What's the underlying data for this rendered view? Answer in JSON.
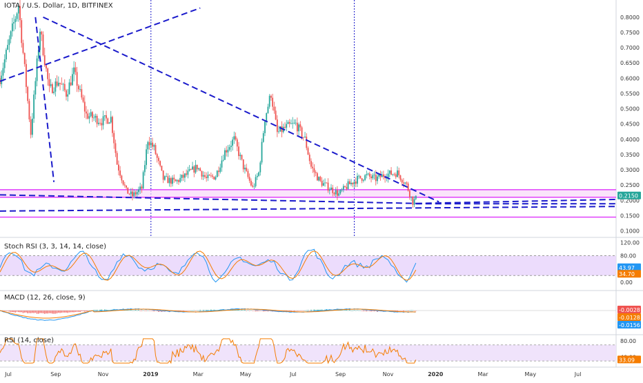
{
  "header": {
    "title": "IOTA / U.S. Dollar, 1D, BITFINEX"
  },
  "colors": {
    "up": "#26a69a",
    "down": "#ef5350",
    "trend": "#1a1acb",
    "zone": "#e040fb",
    "price_badge": "#26a69a",
    "stoch_k": "#2196f3",
    "stoch_d": "#f57c00",
    "stoch_band": "#e7d3fb",
    "macd_line": "#2196f3",
    "signal_line": "#f57c00",
    "rsi_line": "#f57c00",
    "rsi_band": "#eee0fb",
    "grid": "#f0f3fa"
  },
  "chart_data": [
    {
      "type": "candlestick",
      "title": "IOTA / U.S. Dollar, 1D, BITFINEX",
      "x_ticks": [
        "Jul",
        "Sep",
        "Nov",
        "2019",
        "Mar",
        "May",
        "Jul",
        "Sep",
        "Nov",
        "2020",
        "Mar",
        "May",
        "Jul"
      ],
      "y_ticks": [
        "0.8000",
        "0.7500",
        "0.7000",
        "0.6500",
        "0.6000",
        "0.5500",
        "0.5000",
        "0.4500",
        "0.4000",
        "0.3500",
        "0.3000",
        "0.2500",
        "0.2000",
        "0.1500",
        "0.1000"
      ],
      "ylim": [
        0.09,
        0.82
      ],
      "last_price": "0.2150",
      "grid": false,
      "price_path": [
        [
          0,
          0.6
        ],
        [
          12,
          0.84
        ],
        [
          20,
          0.42
        ],
        [
          26,
          0.76
        ],
        [
          32,
          0.56
        ],
        [
          38,
          0.59
        ],
        [
          43,
          0.55
        ],
        [
          48,
          0.62
        ],
        [
          56,
          0.48
        ],
        [
          66,
          0.46
        ],
        [
          72,
          0.47
        ],
        [
          76,
          0.32
        ],
        [
          82,
          0.23
        ],
        [
          86,
          0.215
        ],
        [
          92,
          0.24
        ],
        [
          96,
          0.4
        ],
        [
          100,
          0.37
        ],
        [
          106,
          0.27
        ],
        [
          114,
          0.26
        ],
        [
          120,
          0.28
        ],
        [
          128,
          0.31
        ],
        [
          134,
          0.27
        ],
        [
          140,
          0.28
        ],
        [
          146,
          0.36
        ],
        [
          152,
          0.4
        ],
        [
          158,
          0.31
        ],
        [
          164,
          0.24
        ],
        [
          168,
          0.29
        ],
        [
          172,
          0.47
        ],
        [
          176,
          0.55
        ],
        [
          180,
          0.42
        ],
        [
          186,
          0.44
        ],
        [
          192,
          0.45
        ],
        [
          198,
          0.4
        ],
        [
          202,
          0.31
        ],
        [
          208,
          0.26
        ],
        [
          214,
          0.24
        ],
        [
          220,
          0.22
        ],
        [
          226,
          0.25
        ],
        [
          232,
          0.27
        ],
        [
          238,
          0.28
        ],
        [
          244,
          0.27
        ],
        [
          250,
          0.285
        ],
        [
          258,
          0.29
        ],
        [
          264,
          0.25
        ],
        [
          268,
          0.195
        ],
        [
          270,
          0.205
        ]
      ],
      "trend_lines": [
        {
          "from": [
            0,
            0.59
          ],
          "to": [
            130,
            0.83
          ]
        },
        {
          "from": [
            28,
            0.8
          ],
          "to": [
            285,
            0.195
          ]
        },
        {
          "from": [
            23,
            0.8
          ],
          "to": [
            35,
            0.26
          ]
        },
        {
          "from": [
            0,
            0.218
          ],
          "to": [
            270,
            0.19
          ]
        },
        {
          "from": [
            270,
            0.19
          ],
          "to": [
            400,
            0.203
          ]
        },
        {
          "from": [
            0,
            0.165
          ],
          "to": [
            400,
            0.18
          ]
        },
        {
          "from": [
            270,
            0.189
          ],
          "to": [
            400,
            0.189
          ]
        }
      ],
      "zones": [
        0.235,
        0.21,
        0.145
      ],
      "vertical_markers": [
        98,
        230
      ]
    },
    {
      "type": "line",
      "title": "Stoch RSI (3, 3, 14, 14, close)",
      "y_ticks": [
        "120.00",
        "80.00",
        "40.00",
        "0.00"
      ],
      "ylim": [
        -15,
        125
      ],
      "band": [
        20,
        80
      ],
      "last_values": [
        "43.97",
        "34.70"
      ]
    },
    {
      "type": "line",
      "title": "MACD (12, 26, close, 9)",
      "last_values": [
        "-0.0028",
        "-0.0128",
        "-0.0156"
      ]
    },
    {
      "type": "line",
      "title": "RSI (14, close)",
      "y_ticks": [
        "80.00",
        "40.00"
      ],
      "ylim": [
        20,
        90
      ],
      "band": [
        30,
        70
      ],
      "last_value": "33.09"
    }
  ]
}
